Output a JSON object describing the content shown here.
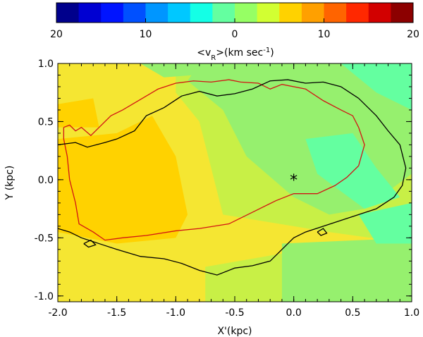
{
  "chart_data": {
    "type": "heatmap",
    "colorbar": {
      "colors": [
        "#00008c",
        "#0000d2",
        "#0014ff",
        "#0050ff",
        "#0096ff",
        "#00c8ff",
        "#14ffe6",
        "#64ffa0",
        "#96ff64",
        "#d2ff32",
        "#ffd200",
        "#ffa000",
        "#ff6400",
        "#ff2800",
        "#d20000",
        "#8c0000"
      ],
      "tick_labels": [
        "20",
        "10",
        "0",
        "10",
        "20"
      ],
      "label_text": "<v",
      "label_sub": "R",
      "label_unit": ">(km sec",
      "label_sup": "-1",
      "label_close": ")"
    },
    "xlabel": "X'(kpc)",
    "ylabel": "Y (kpc)",
    "xlim": [
      -2.0,
      1.0
    ],
    "ylim": [
      -1.05,
      1.0
    ],
    "x_ticks": [
      "-2.0",
      "-1.5",
      "-1.0",
      "-0.5",
      "0.0",
      "0.5",
      "1.0"
    ],
    "y_ticks": [
      "1.0",
      "0.5",
      "0.0",
      "-0.5",
      "-1.0"
    ],
    "field_colors": {
      "orange": "#ffd200",
      "yellow": "#f5e632",
      "yellow_green": "#c8f046",
      "green": "#96f06e",
      "cyan_green": "#64ffa0"
    },
    "marker": {
      "symbol": "*",
      "x": 0.0,
      "y": 0.0
    },
    "contours": [
      {
        "color": "#d21414",
        "points": [
          [
            -1.95,
            0.45
          ],
          [
            -1.9,
            0.47
          ],
          [
            -1.85,
            0.42
          ],
          [
            -1.8,
            0.45
          ],
          [
            -1.72,
            0.38
          ],
          [
            -1.65,
            0.45
          ],
          [
            -1.55,
            0.55
          ],
          [
            -1.45,
            0.6
          ],
          [
            -1.35,
            0.66
          ],
          [
            -1.25,
            0.72
          ],
          [
            -1.15,
            0.78
          ],
          [
            -1.0,
            0.83
          ],
          [
            -0.85,
            0.85
          ],
          [
            -0.7,
            0.84
          ],
          [
            -0.55,
            0.86
          ],
          [
            -0.45,
            0.84
          ],
          [
            -0.3,
            0.83
          ],
          [
            -0.2,
            0.78
          ],
          [
            -0.1,
            0.82
          ],
          [
            0.1,
            0.78
          ],
          [
            0.25,
            0.68
          ],
          [
            0.4,
            0.6
          ],
          [
            0.5,
            0.55
          ],
          [
            0.55,
            0.45
          ],
          [
            0.6,
            0.3
          ],
          [
            0.55,
            0.12
          ],
          [
            0.45,
            0.02
          ],
          [
            0.35,
            -0.05
          ],
          [
            0.2,
            -0.12
          ],
          [
            0.0,
            -0.12
          ],
          [
            -0.15,
            -0.18
          ],
          [
            -0.35,
            -0.28
          ],
          [
            -0.55,
            -0.38
          ],
          [
            -0.8,
            -0.42
          ],
          [
            -1.0,
            -0.44
          ],
          [
            -1.25,
            -0.48
          ],
          [
            -1.45,
            -0.5
          ],
          [
            -1.6,
            -0.52
          ],
          [
            -1.7,
            -0.45
          ],
          [
            -1.82,
            -0.38
          ],
          [
            -1.85,
            -0.2
          ],
          [
            -1.9,
            0.0
          ],
          [
            -1.92,
            0.2
          ],
          [
            -1.95,
            0.35
          ],
          [
            -1.95,
            0.45
          ]
        ]
      },
      {
        "color": "#000000",
        "points": [
          [
            -2.0,
            0.3
          ],
          [
            -1.85,
            0.32
          ],
          [
            -1.75,
            0.28
          ],
          [
            -1.6,
            0.32
          ],
          [
            -1.5,
            0.35
          ],
          [
            -1.35,
            0.42
          ],
          [
            -1.25,
            0.55
          ],
          [
            -1.1,
            0.62
          ],
          [
            -0.95,
            0.72
          ],
          [
            -0.8,
            0.76
          ],
          [
            -0.65,
            0.72
          ],
          [
            -0.5,
            0.74
          ],
          [
            -0.35,
            0.78
          ],
          [
            -0.2,
            0.85
          ],
          [
            -0.05,
            0.86
          ],
          [
            0.1,
            0.83
          ],
          [
            0.25,
            0.84
          ],
          [
            0.4,
            0.8
          ],
          [
            0.55,
            0.7
          ],
          [
            0.7,
            0.55
          ],
          [
            0.8,
            0.42
          ],
          [
            0.9,
            0.3
          ],
          [
            0.95,
            0.1
          ],
          [
            0.92,
            -0.05
          ],
          [
            0.85,
            -0.15
          ],
          [
            0.7,
            -0.25
          ],
          [
            0.55,
            -0.3
          ],
          [
            0.4,
            -0.35
          ],
          [
            0.25,
            -0.4
          ],
          [
            0.1,
            -0.45
          ],
          [
            0.0,
            -0.5
          ],
          [
            -0.1,
            -0.6
          ],
          [
            -0.2,
            -0.7
          ],
          [
            -0.35,
            -0.74
          ],
          [
            -0.5,
            -0.76
          ],
          [
            -0.65,
            -0.82
          ],
          [
            -0.8,
            -0.78
          ],
          [
            -0.95,
            -0.72
          ],
          [
            -1.1,
            -0.68
          ],
          [
            -1.3,
            -0.66
          ],
          [
            -1.5,
            -0.6
          ],
          [
            -1.65,
            -0.55
          ],
          [
            -1.8,
            -0.5
          ],
          [
            -1.9,
            -0.45
          ],
          [
            -2.0,
            -0.42
          ]
        ]
      },
      {
        "color": "#000000",
        "points": [
          [
            0.2,
            -0.45
          ],
          [
            0.25,
            -0.42
          ],
          [
            0.28,
            -0.46
          ],
          [
            0.23,
            -0.48
          ],
          [
            0.2,
            -0.45
          ]
        ]
      },
      {
        "color": "#000000",
        "points": [
          [
            -1.78,
            -0.55
          ],
          [
            -1.72,
            -0.52
          ],
          [
            -1.68,
            -0.56
          ],
          [
            -1.74,
            -0.58
          ],
          [
            -1.78,
            -0.55
          ]
        ]
      }
    ]
  }
}
